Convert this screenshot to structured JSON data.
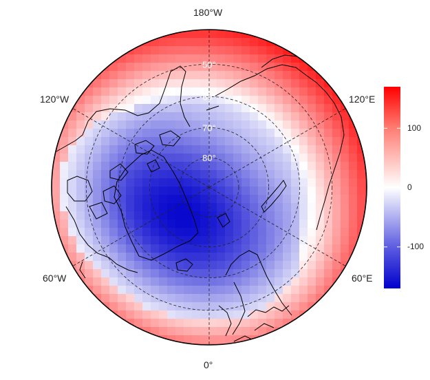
{
  "map": {
    "projection": "north-polar-stereographic",
    "center_latitude": 90,
    "outer_latitude": 40,
    "graticule": {
      "latitudes": [
        50,
        60,
        70,
        80
      ],
      "longitudes": [
        0,
        60,
        120,
        180,
        -120,
        -60
      ],
      "latitude_labels": [
        "50°",
        "60°",
        "70°",
        "80°"
      ],
      "longitude_labels": {
        "top": "180°W",
        "bottom": "0°",
        "upper_left": "120°W",
        "upper_right": "120°E",
        "lower_left": "60°W",
        "lower_right": "60°E"
      }
    }
  },
  "colorbar": {
    "min": -170,
    "max": 170,
    "ticks": [
      {
        "value": 100,
        "label": "100"
      },
      {
        "value": 0,
        "label": "0"
      },
      {
        "value": -100,
        "label": "-100"
      }
    ],
    "colors": {
      "low": "#0000cc",
      "mid": "#ffffff",
      "high": "#ff0000"
    }
  },
  "field": {
    "description": "anomaly field (blue low centred near Greenland, red high ring)",
    "low_center": {
      "lat": 77,
      "lon": -45,
      "value": -165
    },
    "ring_high_value": 110
  }
}
